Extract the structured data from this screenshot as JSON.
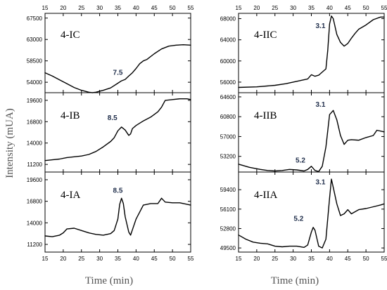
{
  "chart_data": [
    {
      "type": "line",
      "title": "4-IC",
      "x": [
        15,
        17,
        19,
        21,
        23,
        25,
        27,
        28,
        29,
        31,
        33,
        35,
        36,
        37,
        38,
        39,
        40,
        41,
        42,
        43,
        45,
        47,
        49,
        51,
        53,
        55
      ],
      "y": [
        56000,
        55300,
        54500,
        53700,
        52900,
        52300,
        51900,
        51800,
        51900,
        52300,
        52800,
        53800,
        54300,
        54600,
        55300,
        56000,
        56900,
        57900,
        58500,
        58800,
        60000,
        61000,
        61600,
        61800,
        61900,
        61800
      ],
      "annotations": [
        {
          "text": "7.5",
          "x": 35,
          "y": 55600
        }
      ],
      "xlim": [
        15,
        55
      ],
      "ylim": [
        51800,
        68500
      ],
      "yticks": [
        54000,
        58500,
        63000,
        67500
      ],
      "xticks": [
        15,
        20,
        25,
        30,
        35,
        40,
        45,
        50,
        55
      ],
      "xtick_position": "top"
    },
    {
      "type": "line",
      "title": "4-IB",
      "x": [
        15,
        17,
        19,
        21,
        23,
        25,
        27,
        29,
        31,
        33,
        34,
        35,
        36,
        37,
        38,
        38.5,
        39,
        40,
        42,
        44,
        46,
        47,
        48,
        50,
        52,
        54,
        55
      ],
      "y": [
        11700,
        11800,
        11900,
        12100,
        12200,
        12300,
        12500,
        12900,
        13500,
        14200,
        14700,
        15600,
        16100,
        15700,
        15000,
        15200,
        15900,
        16300,
        16900,
        17400,
        18100,
        18700,
        19600,
        19700,
        19800,
        19800,
        19700
      ],
      "annotations": [
        {
          "text": "8.5",
          "x": 33.5,
          "y": 17000
        }
      ],
      "xlim": [
        15,
        55
      ],
      "ylim": [
        10200,
        20600
      ],
      "yticks": [
        11200,
        14000,
        16800,
        19600
      ],
      "xticks": []
    },
    {
      "type": "line",
      "title": "4-IA",
      "x": [
        15,
        17,
        19,
        20,
        21,
        23,
        25,
        27,
        29,
        31,
        33,
        34,
        35,
        35.5,
        36,
        36.5,
        37,
        38,
        38.5,
        39,
        40,
        42,
        44,
        46,
        47,
        48,
        50,
        52,
        55
      ],
      "y": [
        12300,
        12200,
        12400,
        12700,
        13200,
        13300,
        13000,
        12700,
        12500,
        12400,
        12600,
        13000,
        14500,
        16400,
        17200,
        16500,
        14800,
        12800,
        12400,
        13100,
        14500,
        16300,
        16500,
        16500,
        17200,
        16700,
        16600,
        16600,
        16300
      ],
      "annotations": [
        {
          "text": "8.5",
          "x": 35,
          "y": 17900
        }
      ],
      "xlim": [
        15,
        55
      ],
      "ylim": [
        10200,
        20600
      ],
      "yticks": [
        11200,
        14000,
        16800,
        19600
      ],
      "xticks": [
        15,
        20,
        25,
        30,
        35,
        40,
        45,
        50,
        55
      ],
      "xtick_position": "bottom"
    },
    {
      "type": "line",
      "title": "4-IIC",
      "x": [
        15,
        20,
        25,
        28,
        30,
        32,
        34,
        35,
        36,
        37,
        38,
        39,
        39.5,
        40,
        40.5,
        41,
        42,
        43,
        44,
        45,
        46,
        47,
        48,
        50,
        52,
        54,
        55
      ],
      "y": [
        55000,
        55100,
        55400,
        55700,
        56000,
        56300,
        56600,
        57400,
        57100,
        57300,
        57900,
        58500,
        62000,
        67000,
        68500,
        68000,
        65000,
        63500,
        62800,
        63300,
        64300,
        65200,
        66000,
        66800,
        67800,
        68300,
        68300
      ],
      "annotations": [
        {
          "text": "3.1",
          "x": 37.5,
          "y": 66200
        }
      ],
      "xlim": [
        15,
        55
      ],
      "ylim": [
        54000,
        69000
      ],
      "yticks": [
        56000,
        60000,
        64000,
        68000
      ],
      "xticks": [
        15,
        20,
        25,
        30,
        35,
        40,
        45,
        50,
        55
      ],
      "xtick_position": "top"
    },
    {
      "type": "line",
      "title": "4-IIB",
      "x": [
        15,
        18,
        21,
        23,
        25,
        27,
        29,
        31,
        33,
        34,
        35,
        36,
        37,
        38,
        39,
        40,
        41,
        42,
        43,
        44,
        45,
        46,
        48,
        50,
        52,
        53,
        55
      ],
      "y": [
        51700,
        51100,
        50700,
        50500,
        50400,
        50500,
        50700,
        50600,
        50400,
        50700,
        51300,
        50500,
        50300,
        51300,
        55000,
        61200,
        62000,
        60200,
        57200,
        55500,
        56300,
        56400,
        56300,
        56800,
        57200,
        58200,
        57900
      ],
      "annotations": [
        {
          "text": "3.1",
          "x": 37.5,
          "y": 62700
        },
        {
          "text": "5.2",
          "x": 32,
          "y": 52000
        }
      ],
      "xlim": [
        15,
        55
      ],
      "ylim": [
        50200,
        65400
      ],
      "yticks": [
        53200,
        57000,
        60800,
        64600
      ],
      "xticks": []
    },
    {
      "type": "line",
      "title": "4-IIA",
      "x": [
        15,
        17,
        19,
        21,
        23,
        25,
        27,
        29,
        31,
        33,
        34,
        35,
        35.5,
        36,
        37,
        38,
        39,
        40,
        40.5,
        41,
        42,
        43,
        44,
        45,
        46,
        48,
        50,
        52,
        54,
        55
      ],
      "y": [
        51700,
        51000,
        50500,
        50300,
        50200,
        49800,
        49700,
        49800,
        49800,
        49600,
        50000,
        52200,
        53000,
        52500,
        49800,
        49500,
        51000,
        58000,
        61200,
        59800,
        57000,
        55000,
        55300,
        56000,
        55300,
        56000,
        56200,
        56500,
        56800,
        57000
      ],
      "annotations": [
        {
          "text": "3.1",
          "x": 37.5,
          "y": 60300
        },
        {
          "text": "5.2",
          "x": 31.5,
          "y": 54100
        }
      ],
      "xlim": [
        15,
        55
      ],
      "ylim": [
        48800,
        62400
      ],
      "yticks": [
        49500,
        52800,
        56100,
        59400
      ],
      "xticks": [
        15,
        20,
        25,
        30,
        35,
        40,
        45,
        50,
        55
      ],
      "xtick_position": "bottom"
    }
  ],
  "ylabel": "Intensity (mUA)",
  "xlabel_left": "Time (min)",
  "xlabel_right": "Time (min)"
}
